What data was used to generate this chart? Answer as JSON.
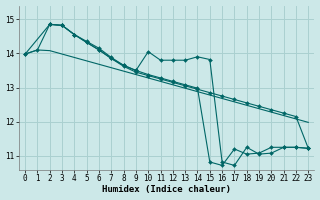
{
  "xlabel": "Humidex (Indice chaleur)",
  "bg_color": "#cce8e8",
  "grid_color": "#aad0d0",
  "line_color": "#006666",
  "xlim": [
    -0.5,
    23.5
  ],
  "ylim": [
    10.6,
    15.4
  ],
  "yticks": [
    11,
    12,
    13,
    14,
    15
  ],
  "xticks": [
    0,
    1,
    2,
    3,
    4,
    5,
    6,
    7,
    8,
    9,
    10,
    11,
    12,
    13,
    14,
    15,
    16,
    17,
    18,
    19,
    20,
    21,
    22,
    23
  ],
  "line_smooth": {
    "x": [
      0,
      1,
      2,
      3,
      4,
      5,
      6,
      7,
      8,
      9,
      10,
      11,
      12,
      13,
      14,
      15,
      16,
      17,
      18,
      19,
      20,
      21,
      22,
      23
    ],
    "y": [
      13.98,
      14.1,
      14.08,
      13.98,
      13.88,
      13.78,
      13.68,
      13.58,
      13.48,
      13.38,
      13.28,
      13.18,
      13.08,
      12.98,
      12.88,
      12.78,
      12.68,
      12.58,
      12.48,
      12.38,
      12.28,
      12.18,
      12.08,
      11.98
    ]
  },
  "line_a": {
    "x": [
      0,
      1,
      2,
      3,
      4,
      5,
      6,
      7,
      8,
      9,
      10,
      11,
      12,
      13,
      14,
      15,
      16,
      17,
      18,
      19,
      20,
      21,
      22,
      23
    ],
    "y": [
      13.98,
      14.1,
      14.85,
      14.82,
      14.55,
      14.35,
      14.15,
      13.88,
      13.65,
      13.5,
      13.38,
      13.28,
      13.18,
      13.08,
      12.98,
      10.82,
      10.72,
      11.2,
      11.05,
      11.08,
      11.25,
      11.25,
      11.25,
      11.22
    ]
  },
  "line_b": {
    "x": [
      2,
      3,
      4,
      5,
      6,
      7,
      8,
      9,
      10,
      11,
      12,
      13,
      14,
      15,
      16,
      17,
      18,
      19,
      20,
      21,
      22,
      23
    ],
    "y": [
      14.85,
      14.82,
      14.55,
      14.32,
      14.1,
      13.85,
      13.65,
      13.5,
      14.05,
      13.8,
      13.8,
      13.8,
      13.9,
      13.82,
      10.82,
      10.72,
      11.25,
      11.05,
      11.08,
      11.25,
      11.25,
      11.22
    ]
  },
  "line_c": {
    "x": [
      0,
      2,
      3,
      4,
      5,
      6,
      7,
      8,
      9,
      10,
      11,
      12,
      13,
      14,
      15,
      16,
      17,
      18,
      19,
      20,
      21,
      22,
      23
    ],
    "y": [
      13.98,
      14.85,
      14.82,
      14.55,
      14.32,
      14.1,
      13.85,
      13.62,
      13.45,
      13.35,
      13.25,
      13.15,
      13.05,
      12.95,
      12.85,
      12.75,
      12.65,
      12.55,
      12.45,
      12.35,
      12.25,
      12.15,
      11.22
    ]
  }
}
